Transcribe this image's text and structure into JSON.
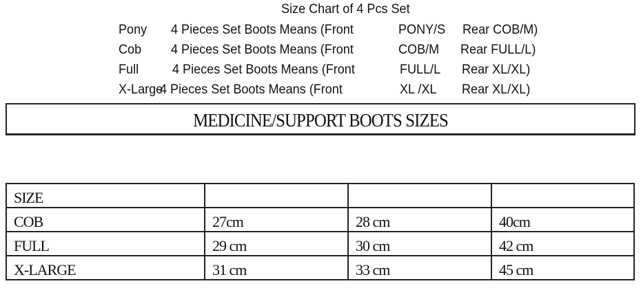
{
  "title": "Size Chart of 4 Pcs Set",
  "sets": [
    {
      "size": "Pony",
      "desc": "4 Pieces Set Boots Means (Front",
      "front": "PONY/S",
      "rear": "Rear COB/M)"
    },
    {
      "size": "Cob",
      "desc": "4 Pieces Set Boots Means (Front",
      "front": "COB/M",
      "rear": "Rear FULL/L)"
    },
    {
      "size": "Full",
      "desc": "4 Pieces Set Boots Means (Front",
      "front": "FULL/L",
      "rear": "Rear XL/XL)"
    },
    {
      "size": "X-Large",
      "desc": "4 Pieces Set Boots Means (Front",
      "front": "XL /XL",
      "rear": "Rear XL/XL)"
    }
  ],
  "banner": "MEDICINE/SUPPORT BOOTS SIZES",
  "table": {
    "header": [
      "SIZE",
      "",
      "",
      ""
    ],
    "rows": [
      [
        "COB",
        "27cm",
        "28 cm",
        "40cm"
      ],
      [
        "FULL",
        "29 cm",
        "30 cm",
        "42 cm"
      ],
      [
        "X-LARGE",
        "31 cm",
        "33 cm",
        "45 cm"
      ]
    ]
  }
}
